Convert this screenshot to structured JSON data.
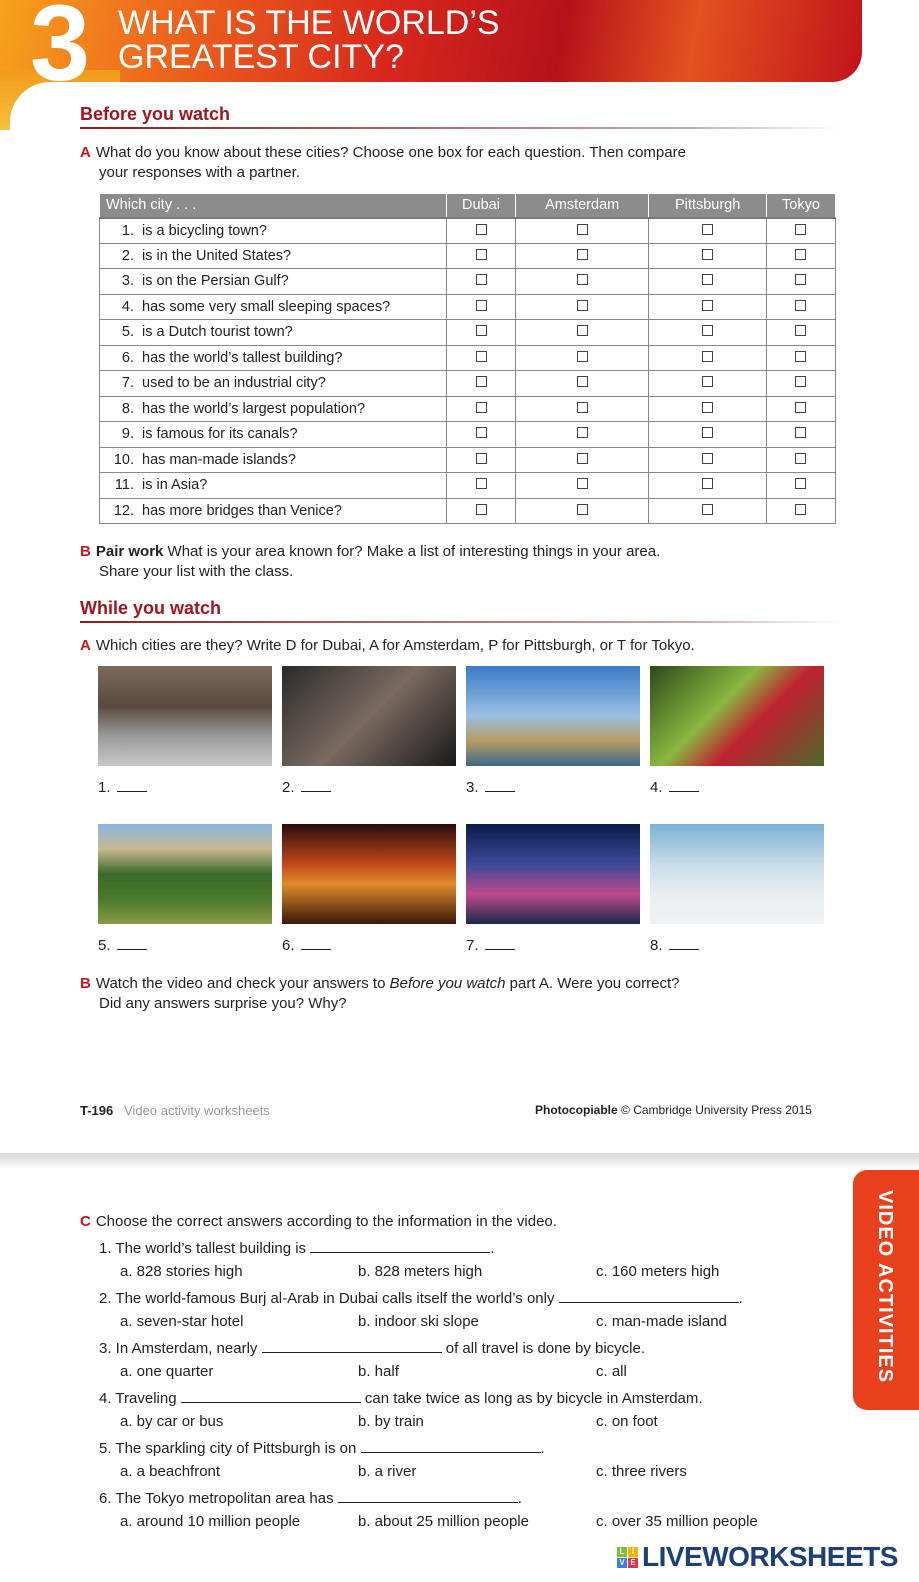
{
  "header": {
    "unit_number": "3",
    "title_line1": "WHAT IS THE WORLD’S",
    "title_line2": "GREATEST CITY?"
  },
  "before": {
    "heading": "Before you watch",
    "a_letter": "A",
    "a_line1": "What do you know about these cities? Choose one box for each question. Then compare",
    "a_line2": "your responses with a partner.",
    "table": {
      "columns": [
        "Which city . . .",
        "Dubai",
        "Amsterdam",
        "Pittsburgh",
        "Tokyo"
      ],
      "rows": [
        {
          "n": "1.",
          "q": "is a bicycling town?"
        },
        {
          "n": "2.",
          "q": "is in the United States?"
        },
        {
          "n": "3.",
          "q": "is on the Persian Gulf?"
        },
        {
          "n": "4.",
          "q": "has some very small sleeping spaces?"
        },
        {
          "n": "5.",
          "q": "is a Dutch tourist town?"
        },
        {
          "n": "6.",
          "q": "has the world’s tallest building?"
        },
        {
          "n": "7.",
          "q": "used to be an industrial city?"
        },
        {
          "n": "8.",
          "q": "has the world’s largest population?"
        },
        {
          "n": "9.",
          "q": "is famous for its canals?"
        },
        {
          "n": "10.",
          "q": "has man-made islands?"
        },
        {
          "n": "11.",
          "q": "is in Asia?"
        },
        {
          "n": "12.",
          "q": "has more bridges than Venice?"
        }
      ]
    },
    "b_letter": "B",
    "b_bold": "Pair work",
    "b_line1": "What is your area known for? Make a list of interesting things in your area.",
    "b_line2": "Share your list with the class."
  },
  "while": {
    "heading": "While you watch",
    "a_letter": "A",
    "a_text": "Which cities are they? Write D for Dubai, A for Amsterdam, P for Pittsburgh, or T for Tokyo.",
    "photos": [
      {
        "label": "1."
      },
      {
        "label": "2."
      },
      {
        "label": "3."
      },
      {
        "label": "4."
      },
      {
        "label": "5."
      },
      {
        "label": "6."
      },
      {
        "label": "7."
      },
      {
        "label": "8."
      }
    ],
    "b_letter": "B",
    "b_pre": "Watch the video and check your answers to ",
    "b_italic": "Before you watch",
    "b_post": " part A. Were you correct?",
    "b_line2": "Did any answers surprise you? Why?"
  },
  "footer": {
    "page": "T-196",
    "section": "Video activity worksheets",
    "photocopiable": "Photocopiable",
    "copyright": "© Cambridge University Press 2015"
  },
  "side_tab": "VIDEO ACTIVITIES",
  "partc": {
    "letter": "C",
    "instruction": "Choose the correct answers according to the information in the video.",
    "questions": [
      {
        "pre": "1. The world’s tallest building is ",
        "post": ".",
        "a": "a.  828 stories high",
        "b": "b.  828 meters high",
        "c": "c.  160 meters high"
      },
      {
        "pre": "2. The world-famous Burj al-Arab in Dubai calls itself the world’s only ",
        "post": ".",
        "a": "a.  seven-star hotel",
        "b": "b.  indoor ski slope",
        "c": "c.  man-made island"
      },
      {
        "pre": "3. In Amsterdam, nearly ",
        "post": " of all travel is done by bicycle.",
        "a": "a.  one quarter",
        "b": "b.  half",
        "c": "c.  all"
      },
      {
        "pre": "4. Traveling ",
        "post": " can take twice as long as by bicycle in Amsterdam.",
        "a": "a.  by car or bus",
        "b": "b.  by train",
        "c": "c.  on foot"
      },
      {
        "pre": "5. The sparkling city of Pittsburgh is on ",
        "post": ".",
        "a": "a.  a beachfront",
        "b": "b.  a river",
        "c": "c.  three rivers"
      },
      {
        "pre": "6. The Tokyo metropolitan area has ",
        "post": ".",
        "a": "a.  around 10 million people",
        "b": "b.  about 25 million people",
        "c": "c.  over 35 million people"
      }
    ]
  },
  "watermark": {
    "logo_letters": [
      "L",
      "I",
      "V",
      "E"
    ],
    "text": "LIVEWORKSHEETS"
  },
  "colors": {
    "accent_red": "#a3151d",
    "tab_orange": "#e8401c",
    "table_header": "#8c8c8c"
  }
}
